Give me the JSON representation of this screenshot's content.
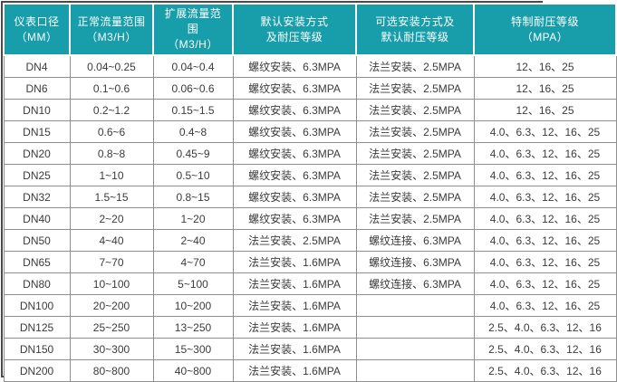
{
  "colors": {
    "header_bg": "#189EAA",
    "header_text": "#FFFFFF",
    "body_text": "#3B3B3B",
    "grid_line": "#8F8F8F",
    "outer_border": "#4A4A4A",
    "row_bg": "#FFFFFF"
  },
  "table": {
    "columns": [
      {
        "label": "仪表口径\n（MM）"
      },
      {
        "label": "正常流量范围\n（M3/H）"
      },
      {
        "label": "扩展流量范围\n（M3/H）"
      },
      {
        "label": "默认安装方式\n及耐压等级"
      },
      {
        "label": "可选安装方式及\n默认耐压等级"
      },
      {
        "label": "特制耐压等级\n（MPA）"
      }
    ],
    "rows": [
      {
        "cells": [
          "DN4",
          "0.04~0.25",
          "0.04~0.4",
          "螺纹安装、6.3MPA",
          "法兰安装、2.5MPA",
          "12、16、25"
        ]
      },
      {
        "cells": [
          "DN6",
          "0.1~0.6",
          "0.06~0.6",
          "螺纹安装、6.3MPA",
          "法兰安装、2.5MPA",
          "12、16、25"
        ]
      },
      {
        "cells": [
          "DN10",
          "0.2~1.2",
          "0.15~1.5",
          "螺纹安装、6.3MPA",
          "法兰安装、2.5MPA",
          "12、16、25"
        ]
      },
      {
        "cells": [
          "DN15",
          "0.6~6",
          "0.4~8",
          "螺纹安装、6.3MPA",
          "法兰安装、2.5MPA",
          "4.0、6.3、12、16、25"
        ]
      },
      {
        "cells": [
          "DN20",
          "0.8~8",
          "0.45~9",
          "螺纹安装、6.3MPA",
          "法兰安装、2.5MPA",
          "4.0、6.3、12、16、25"
        ]
      },
      {
        "cells": [
          "DN25",
          "1~10",
          "0.5~10",
          "螺纹安装、6.3MPA",
          "法兰安装、2.5MPA",
          "4.0、6.3、12、16、25"
        ]
      },
      {
        "cells": [
          "DN32",
          "1.5~15",
          "0.8~15",
          "螺纹安装、6.3MPA",
          "法兰安装、2.5MPA",
          "4.0、6.3、12、16、25"
        ]
      },
      {
        "cells": [
          "DN40",
          "2~20",
          "1~20",
          "螺纹安装、6.3MPA",
          "法兰安装、2.5MPA",
          "4.0、6.3、12、16、25"
        ]
      },
      {
        "cells": [
          "DN50",
          "4~40",
          "2~40",
          "法兰安装、2.5MPA",
          "螺纹连接、6.3MPA",
          "4.0、6.3、12、16、25"
        ]
      },
      {
        "cells": [
          "DN65",
          "7~70",
          "4~70",
          "法兰安装、1.6MPA",
          "螺纹连接、6.3MPA",
          "4.0、6.3、12、16、25"
        ]
      },
      {
        "cells": [
          "DN80",
          "10~100",
          "5~100",
          "法兰安装、1.6MPA",
          "螺纹连接、6.3MPA",
          "4.0、6.3、12、16、25"
        ]
      },
      {
        "cells": [
          "DN100",
          "20~200",
          "10~200",
          "法兰安装、1.6MPA",
          "",
          "4.0、6.3、12、16、25"
        ]
      },
      {
        "cells": [
          "DN125",
          "25~250",
          "13~250",
          "法兰安装、1.6MPA",
          "",
          "2.5、4.0、6.3、12、16"
        ]
      },
      {
        "cells": [
          "DN150",
          "30~300",
          "15~300",
          "法兰安装、1.6MPA",
          "",
          "2.5、4.0、6.3、12、16"
        ]
      },
      {
        "cells": [
          "DN200",
          "80~800",
          "40~800",
          "法兰安装、1.6MPA",
          "",
          "2.5、4.0、6.3、12、16"
        ]
      }
    ]
  }
}
